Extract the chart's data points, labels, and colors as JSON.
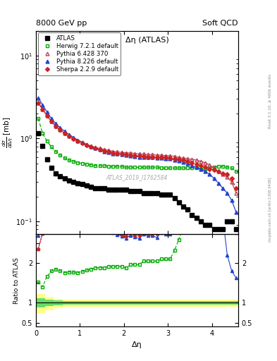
{
  "title_top": "8000 GeV pp",
  "title_right": "Soft QCD",
  "plot_title": "Δη (ATLAS)",
  "ylabel_ratio": "Ratio to ATLAS",
  "xlabel": "Δη",
  "watermark": "ATLAS_2019_I1762584",
  "rivet_label": "Rivet 3.1.10, ≥ 400k events",
  "arxiv_label": "[arXiv:1306.3436]",
  "mcplots_label": "mcplots.cern.ch",
  "atlas_x": [
    0.05,
    0.15,
    0.25,
    0.35,
    0.45,
    0.55,
    0.65,
    0.75,
    0.85,
    0.95,
    1.05,
    1.15,
    1.25,
    1.35,
    1.45,
    1.55,
    1.65,
    1.75,
    1.85,
    1.95,
    2.05,
    2.15,
    2.25,
    2.35,
    2.45,
    2.55,
    2.65,
    2.75,
    2.85,
    2.95,
    3.05,
    3.15,
    3.25,
    3.35,
    3.45,
    3.55,
    3.65,
    3.75,
    3.85,
    3.95,
    4.05,
    4.15,
    4.25,
    4.35,
    4.45,
    4.55
  ],
  "atlas_y": [
    1.15,
    0.82,
    0.56,
    0.44,
    0.38,
    0.35,
    0.33,
    0.31,
    0.3,
    0.29,
    0.28,
    0.27,
    0.26,
    0.25,
    0.25,
    0.25,
    0.24,
    0.24,
    0.24,
    0.24,
    0.24,
    0.23,
    0.23,
    0.23,
    0.22,
    0.22,
    0.22,
    0.22,
    0.21,
    0.21,
    0.21,
    0.19,
    0.17,
    0.15,
    0.14,
    0.12,
    0.11,
    0.1,
    0.09,
    0.09,
    0.08,
    0.08,
    0.08,
    0.1,
    0.1,
    0.08
  ],
  "herwig_x": [
    0.05,
    0.15,
    0.25,
    0.35,
    0.45,
    0.55,
    0.65,
    0.75,
    0.85,
    0.95,
    1.05,
    1.15,
    1.25,
    1.35,
    1.45,
    1.55,
    1.65,
    1.75,
    1.85,
    1.95,
    2.05,
    2.15,
    2.25,
    2.35,
    2.45,
    2.55,
    2.65,
    2.75,
    2.85,
    2.95,
    3.05,
    3.15,
    3.25,
    3.35,
    3.45,
    3.55,
    3.65,
    3.75,
    3.85,
    3.95,
    4.05,
    4.15,
    4.25,
    4.35,
    4.45,
    4.55
  ],
  "herwig_y": [
    1.75,
    1.15,
    0.93,
    0.79,
    0.7,
    0.63,
    0.58,
    0.55,
    0.53,
    0.51,
    0.5,
    0.49,
    0.48,
    0.47,
    0.47,
    0.47,
    0.46,
    0.46,
    0.46,
    0.46,
    0.45,
    0.45,
    0.45,
    0.45,
    0.45,
    0.45,
    0.45,
    0.45,
    0.44,
    0.44,
    0.44,
    0.44,
    0.44,
    0.44,
    0.44,
    0.44,
    0.44,
    0.43,
    0.43,
    0.44,
    0.45,
    0.46,
    0.46,
    0.45,
    0.44,
    0.4
  ],
  "pythia6_x": [
    0.05,
    0.15,
    0.25,
    0.35,
    0.45,
    0.55,
    0.65,
    0.75,
    0.85,
    0.95,
    1.05,
    1.15,
    1.25,
    1.35,
    1.45,
    1.55,
    1.65,
    1.75,
    1.85,
    1.95,
    2.05,
    2.15,
    2.25,
    2.35,
    2.45,
    2.55,
    2.65,
    2.75,
    2.85,
    2.95,
    3.05,
    3.15,
    3.25,
    3.35,
    3.45,
    3.55,
    3.65,
    3.75,
    3.85,
    3.95,
    4.05,
    4.15,
    4.25,
    4.35,
    4.45,
    4.55
  ],
  "pythia6_y": [
    2.7,
    2.25,
    1.88,
    1.6,
    1.41,
    1.27,
    1.16,
    1.07,
    1.0,
    0.94,
    0.89,
    0.85,
    0.81,
    0.78,
    0.76,
    0.74,
    0.72,
    0.7,
    0.69,
    0.68,
    0.67,
    0.67,
    0.66,
    0.65,
    0.65,
    0.64,
    0.64,
    0.63,
    0.63,
    0.62,
    0.62,
    0.61,
    0.59,
    0.58,
    0.57,
    0.56,
    0.55,
    0.53,
    0.51,
    0.48,
    0.44,
    0.4,
    0.37,
    0.34,
    0.3,
    0.22
  ],
  "pythia8_x": [
    0.05,
    0.15,
    0.25,
    0.35,
    0.45,
    0.55,
    0.65,
    0.75,
    0.85,
    0.95,
    1.05,
    1.15,
    1.25,
    1.35,
    1.45,
    1.55,
    1.65,
    1.75,
    1.85,
    1.95,
    2.05,
    2.15,
    2.25,
    2.35,
    2.45,
    2.55,
    2.65,
    2.75,
    2.85,
    2.95,
    3.05,
    3.15,
    3.25,
    3.35,
    3.45,
    3.55,
    3.65,
    3.75,
    3.85,
    3.95,
    4.05,
    4.15,
    4.25,
    4.35,
    4.45,
    4.55
  ],
  "pythia8_y": [
    3.1,
    2.55,
    2.08,
    1.74,
    1.51,
    1.35,
    1.22,
    1.12,
    1.03,
    0.96,
    0.9,
    0.85,
    0.8,
    0.76,
    0.73,
    0.7,
    0.68,
    0.66,
    0.65,
    0.64,
    0.63,
    0.62,
    0.61,
    0.6,
    0.6,
    0.59,
    0.59,
    0.58,
    0.58,
    0.57,
    0.57,
    0.55,
    0.54,
    0.52,
    0.5,
    0.47,
    0.45,
    0.43,
    0.4,
    0.37,
    0.33,
    0.29,
    0.25,
    0.22,
    0.18,
    0.13
  ],
  "sherpa_x": [
    0.05,
    0.15,
    0.25,
    0.35,
    0.45,
    0.55,
    0.65,
    0.75,
    0.85,
    0.95,
    1.05,
    1.15,
    1.25,
    1.35,
    1.45,
    1.55,
    1.65,
    1.75,
    1.85,
    1.95,
    2.05,
    2.15,
    2.25,
    2.35,
    2.45,
    2.55,
    2.65,
    2.75,
    2.85,
    2.95,
    3.05,
    3.15,
    3.25,
    3.35,
    3.45,
    3.55,
    3.65,
    3.75,
    3.85,
    3.95,
    4.05,
    4.15,
    4.25,
    4.35,
    4.45,
    4.55
  ],
  "sherpa_y": [
    2.7,
    2.25,
    1.88,
    1.6,
    1.41,
    1.27,
    1.15,
    1.06,
    0.99,
    0.93,
    0.88,
    0.83,
    0.79,
    0.76,
    0.73,
    0.71,
    0.69,
    0.67,
    0.66,
    0.65,
    0.64,
    0.63,
    0.62,
    0.62,
    0.61,
    0.6,
    0.6,
    0.6,
    0.59,
    0.59,
    0.58,
    0.57,
    0.56,
    0.55,
    0.53,
    0.51,
    0.49,
    0.47,
    0.45,
    0.43,
    0.42,
    0.4,
    0.38,
    0.37,
    0.33,
    0.25
  ],
  "band_x_lo": [
    0.0,
    0.1,
    0.2,
    0.3,
    0.4,
    0.5,
    0.6,
    0.7,
    0.8,
    0.9,
    1.0,
    1.1,
    1.2,
    1.3,
    1.4,
    1.5,
    1.6,
    1.7,
    1.8,
    1.9,
    2.0,
    2.1,
    2.2,
    2.3,
    2.4,
    2.5,
    2.6,
    2.7,
    2.8,
    2.9,
    3.0,
    3.1,
    3.2,
    3.3,
    3.4,
    3.5,
    3.6,
    3.7,
    3.8,
    3.9,
    4.0,
    4.1,
    4.2,
    4.3,
    4.4,
    4.5
  ],
  "band_x_hi": [
    0.1,
    0.2,
    0.3,
    0.4,
    0.5,
    0.6,
    0.7,
    0.8,
    0.9,
    1.0,
    1.1,
    1.2,
    1.3,
    1.4,
    1.5,
    1.6,
    1.7,
    1.8,
    1.9,
    2.0,
    2.1,
    2.2,
    2.3,
    2.4,
    2.5,
    2.6,
    2.7,
    2.8,
    2.9,
    3.0,
    3.1,
    3.2,
    3.3,
    3.4,
    3.5,
    3.6,
    3.7,
    3.8,
    3.9,
    4.0,
    4.1,
    4.2,
    4.3,
    4.4,
    4.5,
    4.6
  ],
  "band_green_upper": [
    1.12,
    1.12,
    1.08,
    1.08,
    1.06,
    1.06,
    1.05,
    1.05,
    1.05,
    1.05,
    1.05,
    1.05,
    1.05,
    1.05,
    1.05,
    1.05,
    1.05,
    1.05,
    1.05,
    1.05,
    1.05,
    1.05,
    1.05,
    1.05,
    1.05,
    1.05,
    1.05,
    1.05,
    1.05,
    1.05,
    1.05,
    1.05,
    1.05,
    1.05,
    1.05,
    1.05,
    1.05,
    1.05,
    1.05,
    1.05,
    1.05,
    1.05,
    1.05,
    1.05,
    1.05,
    1.05
  ],
  "band_green_lower": [
    0.88,
    0.88,
    0.92,
    0.92,
    0.94,
    0.94,
    0.95,
    0.95,
    0.95,
    0.95,
    0.95,
    0.95,
    0.95,
    0.95,
    0.95,
    0.95,
    0.95,
    0.95,
    0.95,
    0.95,
    0.95,
    0.95,
    0.95,
    0.95,
    0.95,
    0.95,
    0.95,
    0.95,
    0.95,
    0.95,
    0.95,
    0.95,
    0.95,
    0.95,
    0.95,
    0.95,
    0.95,
    0.95,
    0.95,
    0.95,
    0.95,
    0.95,
    0.95,
    0.95,
    0.95,
    0.95
  ],
  "band_yellow_upper": [
    1.22,
    1.22,
    1.15,
    1.15,
    1.1,
    1.1,
    1.08,
    1.08,
    1.07,
    1.07,
    1.07,
    1.07,
    1.07,
    1.07,
    1.07,
    1.07,
    1.07,
    1.07,
    1.07,
    1.07,
    1.07,
    1.07,
    1.07,
    1.07,
    1.07,
    1.07,
    1.07,
    1.07,
    1.07,
    1.07,
    1.07,
    1.07,
    1.07,
    1.07,
    1.07,
    1.07,
    1.07,
    1.07,
    1.07,
    1.07,
    1.07,
    1.07,
    1.07,
    1.07,
    1.07,
    1.07
  ],
  "band_yellow_lower": [
    0.75,
    0.75,
    0.82,
    0.82,
    0.87,
    0.87,
    0.9,
    0.9,
    0.91,
    0.91,
    0.91,
    0.91,
    0.91,
    0.91,
    0.91,
    0.91,
    0.91,
    0.91,
    0.91,
    0.91,
    0.91,
    0.91,
    0.91,
    0.91,
    0.91,
    0.91,
    0.91,
    0.91,
    0.91,
    0.91,
    0.91,
    0.91,
    0.91,
    0.91,
    0.91,
    0.91,
    0.91,
    0.91,
    0.91,
    0.91,
    0.91,
    0.91,
    0.91,
    0.91,
    0.91,
    0.91
  ],
  "color_atlas": "#000000",
  "color_herwig": "#00aa00",
  "color_pythia6": "#bb4455",
  "color_pythia8": "#2244cc",
  "color_sherpa": "#cc2222",
  "ylim_main": [
    0.07,
    20
  ],
  "ylim_ratio": [
    0.4,
    2.72
  ],
  "xlim": [
    0.0,
    4.6
  ]
}
